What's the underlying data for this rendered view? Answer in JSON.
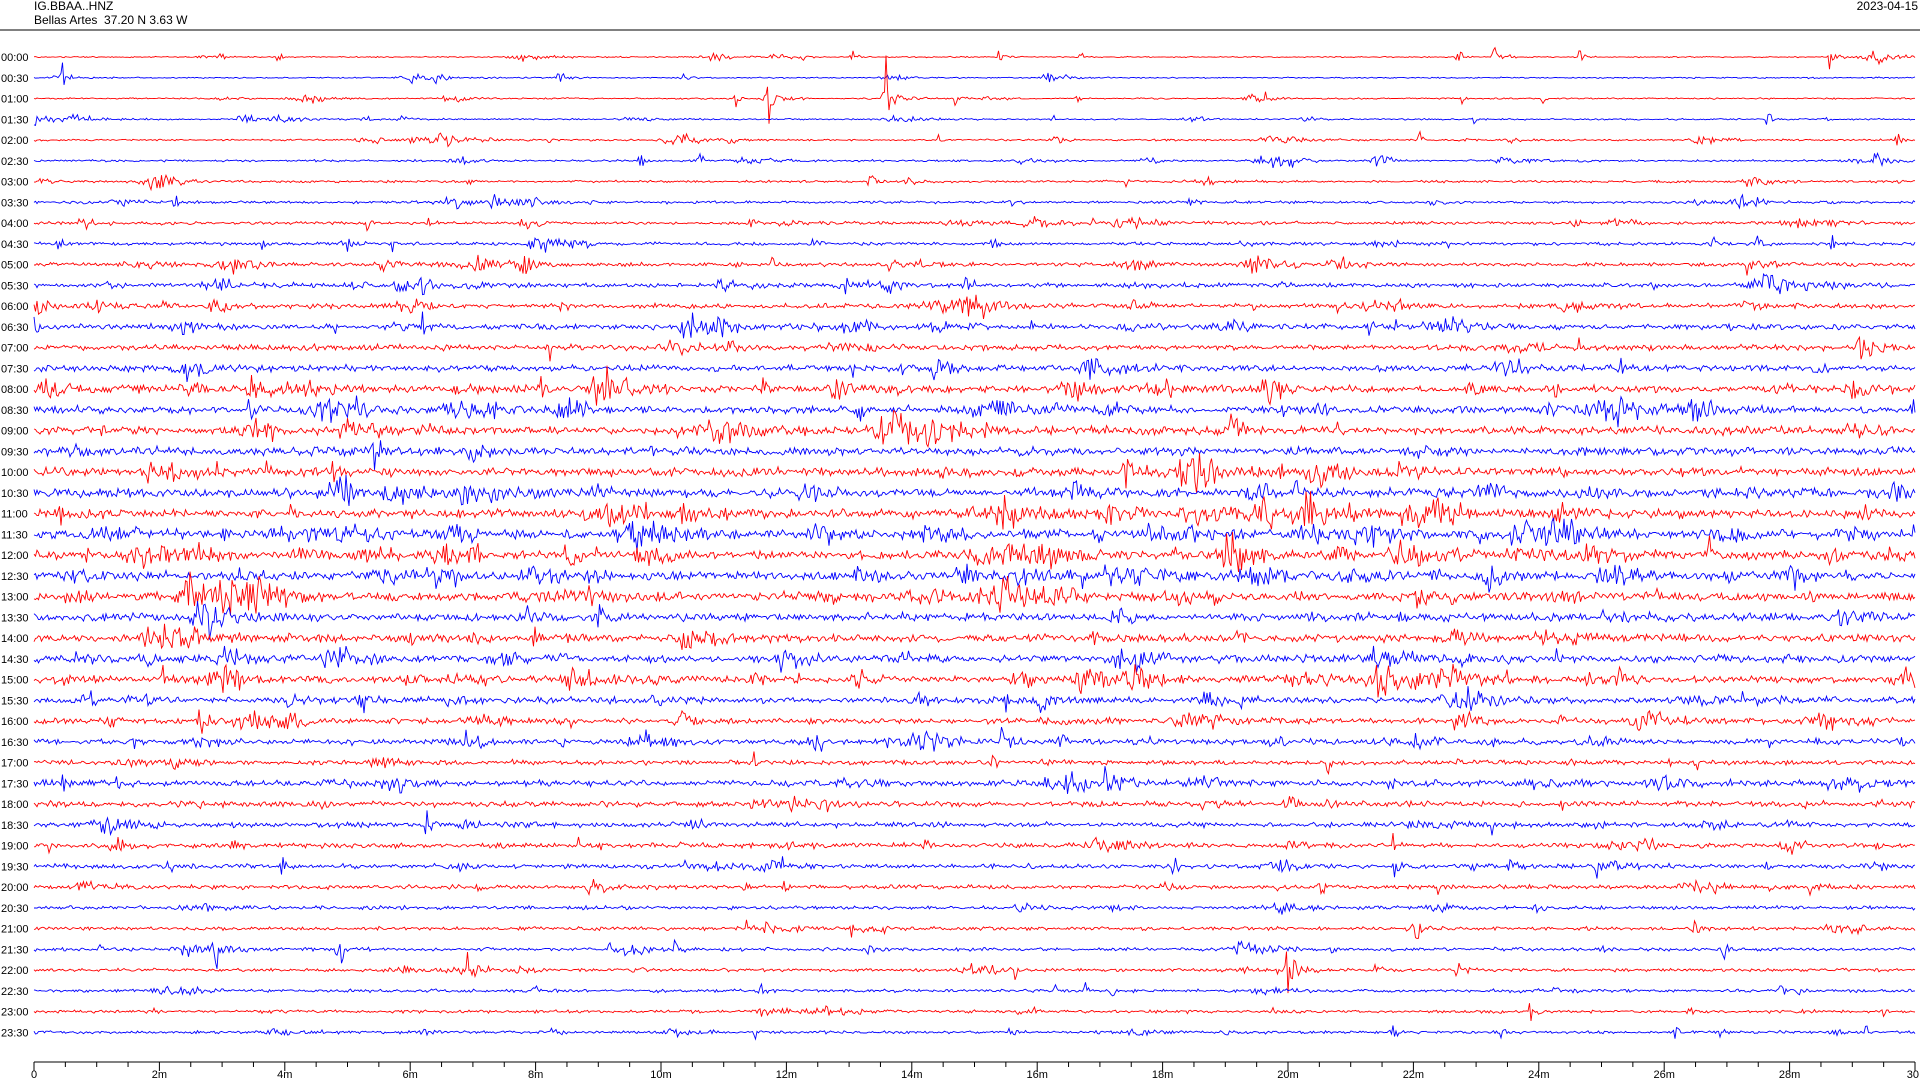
{
  "header": {
    "station": "IG.BBAA..HNZ",
    "location": "Bellas Artes  37.20 N 3.63 W",
    "date": "2023-04-15"
  },
  "colors": {
    "odd_trace": "#ff0000",
    "even_trace": "#0000ff",
    "axis": "#000000"
  },
  "chart_data": {
    "type": "line",
    "title": "IG.BBAA..HNZ",
    "xlabel": "",
    "ylabel": "",
    "xlim": [
      0,
      30
    ],
    "x_unit": "minutes",
    "x_ticks": [
      {
        "v": 0,
        "label": "0"
      },
      {
        "v": 2,
        "label": "2m"
      },
      {
        "v": 4,
        "label": "4m"
      },
      {
        "v": 6,
        "label": "6m"
      },
      {
        "v": 8,
        "label": "8m"
      },
      {
        "v": 10,
        "label": "10m"
      },
      {
        "v": 12,
        "label": "12m"
      },
      {
        "v": 14,
        "label": "14m"
      },
      {
        "v": 16,
        "label": "16m"
      },
      {
        "v": 18,
        "label": "18m"
      },
      {
        "v": 20,
        "label": "20m"
      },
      {
        "v": 22,
        "label": "22m"
      },
      {
        "v": 24,
        "label": "24m"
      },
      {
        "v": 26,
        "label": "26m"
      },
      {
        "v": 28,
        "label": "28m"
      },
      {
        "v": 30,
        "label": "30"
      }
    ],
    "rows": [
      "00:00",
      "00:30",
      "01:00",
      "01:30",
      "02:00",
      "02:30",
      "03:00",
      "03:30",
      "04:00",
      "04:30",
      "05:00",
      "05:30",
      "06:00",
      "06:30",
      "07:00",
      "07:30",
      "08:00",
      "08:30",
      "09:00",
      "09:30",
      "10:00",
      "10:30",
      "11:00",
      "11:30",
      "12:00",
      "12:30",
      "13:00",
      "13:30",
      "14:00",
      "14:30",
      "15:00",
      "15:30",
      "16:00",
      "16:30",
      "17:00",
      "17:30",
      "18:00",
      "18:30",
      "19:00",
      "19:30",
      "20:00",
      "20:30",
      "21:00",
      "21:30",
      "22:00",
      "22:30",
      "23:00",
      "23:30"
    ],
    "row_colors": [
      "#ff0000",
      "#0000ff"
    ],
    "grid": false,
    "legend": "none",
    "notable_events": [
      {
        "row": "01:00",
        "minute": 11.7,
        "amplitude": "very large"
      },
      {
        "row": "01:00",
        "minute": 13.6,
        "amplitude": "very large"
      },
      {
        "row": "22:00",
        "minute": 20.0,
        "amplitude": "large"
      },
      {
        "row": "21:30",
        "minute": 2.9,
        "amplitude": "large"
      }
    ]
  }
}
